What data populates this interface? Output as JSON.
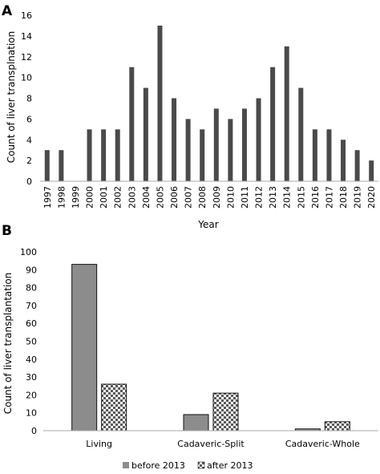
{
  "chart_data": [
    {
      "type": "bar",
      "panel_label": "A",
      "categories": [
        "1997",
        "1998",
        "1999",
        "2000",
        "2001",
        "2002",
        "2003",
        "2004",
        "2005",
        "2006",
        "2007",
        "2008",
        "2009",
        "2010",
        "2011",
        "2012",
        "2013",
        "2014",
        "2015",
        "2016",
        "2017",
        "2018",
        "2019",
        "2020"
      ],
      "values": [
        3,
        3,
        0,
        5,
        5,
        5,
        11,
        9,
        15,
        8,
        6,
        5,
        7,
        6,
        7,
        8,
        11,
        13,
        9,
        5,
        5,
        4,
        3,
        2
      ],
      "title": "",
      "xlabel": "Year",
      "ylabel": "Count of liver transplnation",
      "ylim": [
        0,
        16
      ],
      "yticks": [
        0,
        2,
        4,
        6,
        8,
        10,
        12,
        14,
        16
      ],
      "grid": false,
      "colors": {
        "bar": "#4a4a4a"
      }
    },
    {
      "type": "bar",
      "panel_label": "B",
      "categories": [
        "Living",
        "Cadaveric-Split",
        "Cadaveric-Whole"
      ],
      "series": [
        {
          "name": "before 2013",
          "values": [
            93,
            9,
            1
          ]
        },
        {
          "name": "after 2013",
          "values": [
            26,
            21,
            5
          ]
        }
      ],
      "title": "",
      "xlabel": "",
      "ylabel": "Count of liver transplantation",
      "ylim": [
        0,
        100
      ],
      "yticks": [
        0,
        10,
        20,
        30,
        40,
        50,
        60,
        70,
        80,
        90,
        100
      ],
      "grid": false,
      "legend": "bottom",
      "colors": {
        "before": "#8c8c8c",
        "after": "checkered"
      }
    }
  ]
}
